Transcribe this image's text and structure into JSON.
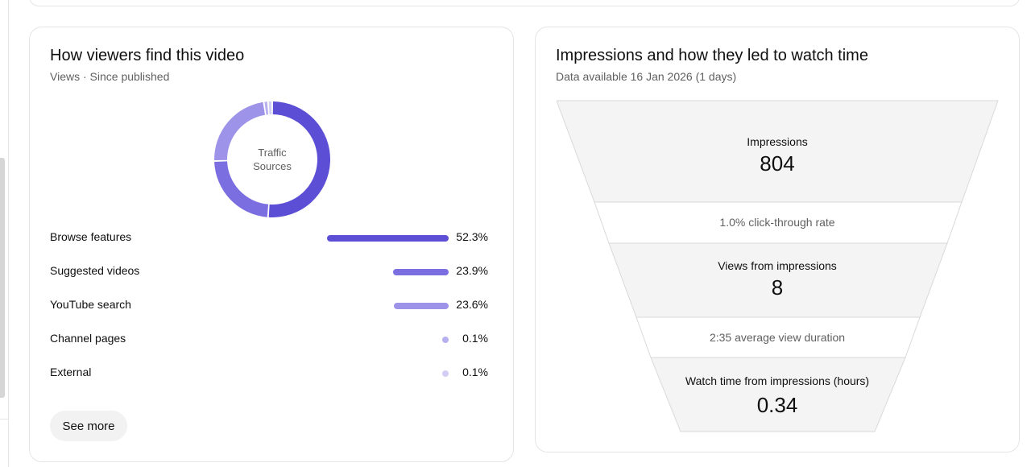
{
  "traffic_card": {
    "title": "How viewers find this video",
    "subtitle": "Views · Since published",
    "donut_label_line1": "Traffic",
    "donut_label_line2": "Sources",
    "see_more": "See more",
    "sources": [
      {
        "name": "Browse features",
        "percent_label": "52.3%",
        "value": 52.3,
        "color": "#5c4fd6"
      },
      {
        "name": "Suggested videos",
        "percent_label": "23.9%",
        "value": 23.9,
        "color": "#7b6ee0"
      },
      {
        "name": "YouTube search",
        "percent_label": "23.6%",
        "value": 23.6,
        "color": "#9d93e8"
      },
      {
        "name": "Channel pages",
        "percent_label": "0.1%",
        "value": 0.1,
        "color": "#b7b0ef"
      },
      {
        "name": "External",
        "percent_label": "0.1%",
        "value": 0.1,
        "color": "#d2cdf5"
      }
    ]
  },
  "funnel_card": {
    "title": "Impressions and how they led to watch time",
    "subtitle": "Data available 16 Jan 2026 (1 days)",
    "impressions_label": "Impressions",
    "impressions_value": "804",
    "ctr_text": "1.0% click-through rate",
    "views_label": "Views from impressions",
    "views_value": "8",
    "avg_duration_text": "2:35 average view duration",
    "watch_time_label": "Watch time from impressions (hours)",
    "watch_time_value": "0.34",
    "colors": {
      "stage_fill": "#f4f4f4",
      "metric_fill": "#ffffff",
      "stroke": "#d9d9d9"
    }
  }
}
